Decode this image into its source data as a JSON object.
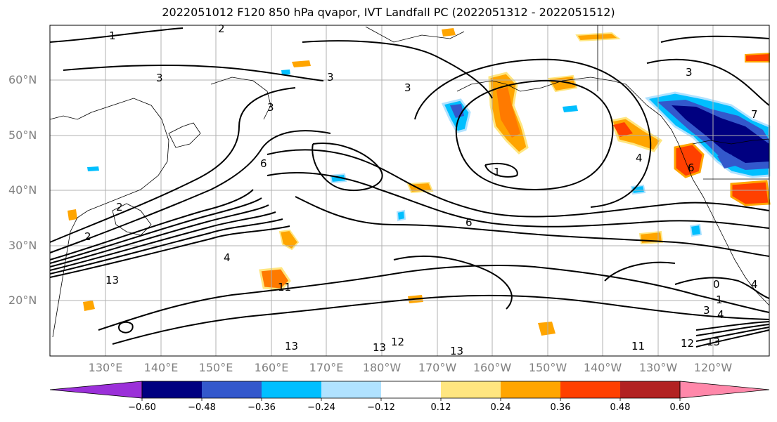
{
  "title": "2022051012 F120 850 hPa qvapor, IVT Landfall PC (2022051312 - 2022051512)",
  "lat_labels": [
    "60°N",
    "50°N",
    "40°N",
    "30°N",
    "20°N"
  ],
  "lon_labels": [
    "130°E",
    "140°E",
    "150°E",
    "160°E",
    "170°E",
    "180°W",
    "170°W",
    "160°W",
    "150°W",
    "140°W",
    "130°W",
    "120°W"
  ],
  "colorbar": {
    "ticks": [
      "−0.60",
      "−0.48",
      "−0.36",
      "−0.24",
      "−0.12",
      "0.12",
      "0.24",
      "0.36",
      "0.48",
      "0.60"
    ],
    "colors": [
      "#9b30d9",
      "#000080",
      "#3358cc",
      "#00bfff",
      "#b0e2ff",
      "#ffffff",
      "#ffe680",
      "#ffa500",
      "#ff4000",
      "#b22222",
      "#ff88aa"
    ]
  },
  "contour_labels": [
    {
      "text": "1"
    },
    {
      "text": "2"
    },
    {
      "text": "3"
    },
    {
      "text": "3"
    },
    {
      "text": "3"
    },
    {
      "text": "3"
    },
    {
      "text": "2"
    },
    {
      "text": "2"
    },
    {
      "text": "6"
    },
    {
      "text": "6"
    },
    {
      "text": "4"
    },
    {
      "text": "1"
    },
    {
      "text": "11"
    },
    {
      "text": "13"
    },
    {
      "text": "13"
    },
    {
      "text": "12"
    },
    {
      "text": "13"
    },
    {
      "text": "11"
    },
    {
      "text": "12"
    },
    {
      "text": "13"
    },
    {
      "text": "13"
    },
    {
      "text": "3"
    },
    {
      "text": "4"
    },
    {
      "text": "0"
    },
    {
      "text": "1"
    },
    {
      "text": "4"
    },
    {
      "text": "3"
    },
    {
      "text": "6"
    },
    {
      "text": "4"
    },
    {
      "text": "7"
    }
  ]
}
